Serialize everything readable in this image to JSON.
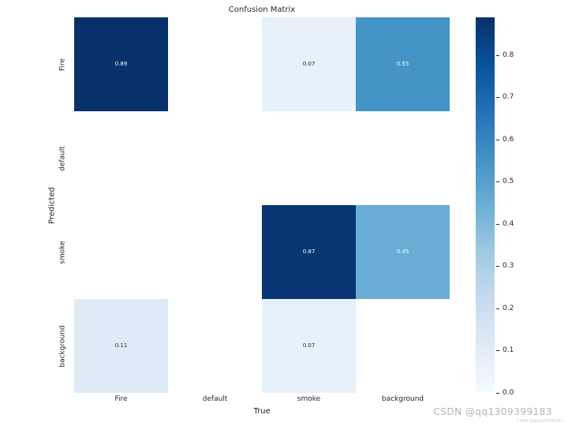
{
  "watermark": {
    "main": "CSDN @qq1309399183",
    "small": "CSDN @qq1309399183"
  },
  "chart_data": {
    "type": "heatmap",
    "title": "Confusion Matrix",
    "xlabel": "True",
    "ylabel": "Predicted",
    "x_categories": [
      "Fire",
      "default",
      "smoke",
      "background"
    ],
    "y_categories": [
      "Fire",
      "default",
      "smoke",
      "background"
    ],
    "matrix": [
      [
        0.89,
        null,
        0.07,
        0.55
      ],
      [
        null,
        null,
        null,
        null
      ],
      [
        null,
        null,
        0.87,
        0.45
      ],
      [
        0.11,
        null,
        0.07,
        null
      ]
    ],
    "vmin": 0.0,
    "vmax": 0.89,
    "colormap": "Blues",
    "colormap_stops": [
      "#f7fbff",
      "#deebf7",
      "#c6dbef",
      "#9ecae1",
      "#6baed6",
      "#4292c6",
      "#2171b5",
      "#08519c",
      "#08306b"
    ],
    "colorbar_ticks": [
      0.0,
      0.1,
      0.2,
      0.3,
      0.4,
      0.5,
      0.6,
      0.7,
      0.8
    ],
    "annotation_dark_text_color": "#262626",
    "annotation_light_text_color": "#ffffff",
    "grid": false,
    "legend_position": "right-colorbar"
  }
}
